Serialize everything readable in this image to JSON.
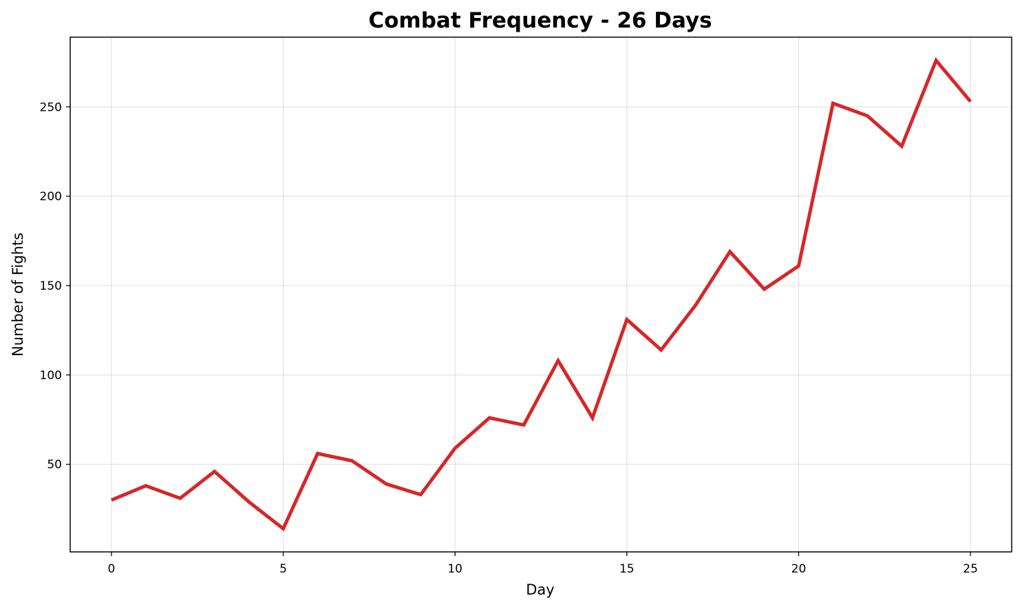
{
  "chart_data": {
    "type": "line",
    "title": "Combat Frequency - 26 Days",
    "xlabel": "Day",
    "ylabel": "Number of Fights",
    "x": [
      0,
      1,
      2,
      3,
      4,
      5,
      6,
      7,
      8,
      9,
      10,
      11,
      12,
      13,
      14,
      15,
      16,
      17,
      18,
      19,
      20,
      21,
      22,
      23,
      24,
      25
    ],
    "series": [
      {
        "values": [
          30,
          38,
          31,
          46,
          29,
          14,
          56,
          52,
          39,
          33,
          59,
          76,
          72,
          108,
          76,
          131,
          114,
          139,
          169,
          148,
          161,
          252,
          245,
          228,
          276,
          253
        ],
        "color": "#d62728"
      }
    ],
    "xlim": [
      -1.2,
      26.2
    ],
    "ylim": [
      1,
      289
    ],
    "xticks": [
      0,
      5,
      10,
      15,
      20,
      25
    ],
    "yticks": [
      50,
      100,
      150,
      200,
      250
    ],
    "grid": true,
    "legend": "none"
  }
}
